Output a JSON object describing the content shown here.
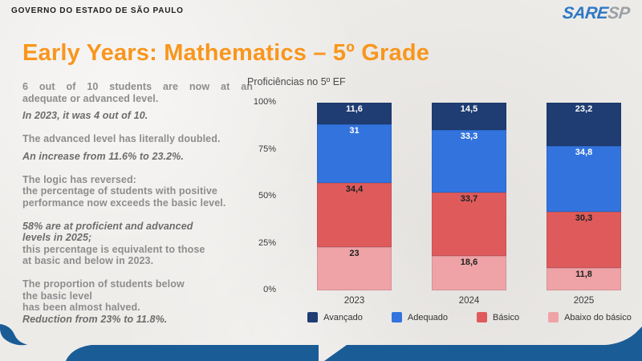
{
  "page": {
    "government_header": "GOVERNO DO ESTADO DE SÃO PAULO",
    "logo": {
      "blue": "SARE",
      "gray": "SP"
    },
    "title": "Early Years: Mathematics – 5º Grade"
  },
  "notes": [
    {
      "lines": [
        {
          "t": "6 out of 10 students are now at an",
          "s": "normal",
          "just": true
        },
        {
          "t": "adequate or advanced level.",
          "s": "normal"
        },
        {
          "t": "In 2023, it was 4 out of 10.",
          "s": "em",
          "gap": true
        }
      ]
    },
    {
      "lines": [
        {
          "t": "The advanced level has literally doubled.",
          "s": "normal"
        },
        {
          "t": "An increase from 11.6% to 23.2%.",
          "s": "em",
          "gap": true
        }
      ]
    },
    {
      "lines": [
        {
          "t": "The logic has reversed:",
          "s": "normal"
        },
        {
          "t": "the percentage of students with positive",
          "s": "normal"
        },
        {
          "t": "performance now exceeds the basic level.",
          "s": "normal"
        }
      ]
    },
    {
      "lines": [
        {
          "t": "58% are at proficient and advanced",
          "s": "em"
        },
        {
          "t": "levels in 2025;",
          "s": "em"
        },
        {
          "t": "this percentage is equivalent to those",
          "s": "normal"
        },
        {
          "t": "at basic and below in 2023.",
          "s": "normal"
        }
      ]
    },
    {
      "lines": [
        {
          "t": "The proportion of students below",
          "s": "normal"
        },
        {
          "t": "the basic level",
          "s": "normal"
        },
        {
          "t": "has been almost halved.",
          "s": "normal"
        },
        {
          "t": "Reduction from 23% to 11.8%.",
          "s": "em"
        }
      ]
    }
  ],
  "chart_data": {
    "type": "bar",
    "stacked": true,
    "title": "Proficiências no 5º EF",
    "categories": [
      "2023",
      "2024",
      "2025"
    ],
    "series": [
      {
        "name": "Avançado",
        "color": "#1f3d73",
        "label_color": "#ffffff",
        "values": [
          11.6,
          14.5,
          23.2
        ],
        "labels": [
          "11,6",
          "14,5",
          "23,2"
        ]
      },
      {
        "name": "Adequado",
        "color": "#3273dd",
        "label_color": "#ffffff",
        "values": [
          31.0,
          33.3,
          34.8
        ],
        "labels": [
          "31",
          "33,3",
          "34,8"
        ]
      },
      {
        "name": "Básico",
        "color": "#df5b5b",
        "label_color": "#202020",
        "values": [
          34.4,
          33.7,
          30.3
        ],
        "labels": [
          "34,4",
          "33,7",
          "30,3"
        ]
      },
      {
        "name": "Abaixo do básico",
        "color": "#efa3a6",
        "label_color": "#202020",
        "values": [
          23.0,
          18.6,
          11.8
        ],
        "labels": [
          "23",
          "18,6",
          "11,8"
        ]
      }
    ],
    "y_ticks": [
      "100%",
      "75%",
      "50%",
      "25%",
      "0%"
    ],
    "ylim": [
      0,
      100
    ],
    "grid": false,
    "legend_position": "bottom"
  },
  "colors": {
    "accent_orange": "#f8961d",
    "band_blue": "#1a5c96",
    "paper": "#edebe8",
    "note_gray": "#8d8d8d",
    "note_dark": "#6c6c6c",
    "logo_blue": "#2e78c6",
    "logo_gray": "#9aa0a6"
  }
}
